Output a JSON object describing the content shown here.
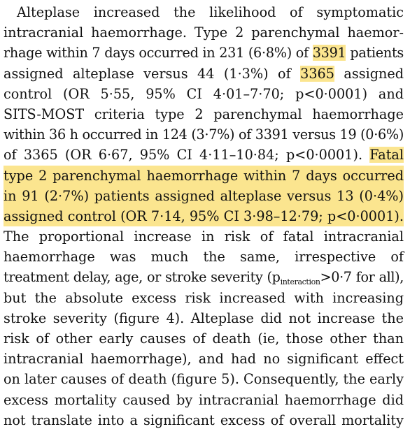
{
  "paragraph": {
    "lines": [
      "Alteplase increased the likelihood of symptomatic",
      "intracranial haemorrhage. Type 2 parenchymal haemor-",
      "rhage within 7 days occurred in 231 (6·8%) of ",
      "3391",
      " patients",
      "assigned alteplase versus 44 (1·3%) of ",
      "3365",
      " assigned",
      "control (OR 5·55, 95% CI 4·01–7·70; p<0·0001) and",
      "SITS-MOST criteria type 2 parenchymal haemorrhage",
      "within 36 h occurred in 124 (3·7%) of 3391 versus 19 (0·6%)",
      "of 3365 (OR 6·67, 95% CI 4·11–10·84; p<0·0001). ",
      "Fatal",
      "type 2 parenchymal haemorrhage within 7 days occurred",
      "in 91 (2·7%) patients assigned alteplase versus 13 (0·4%)",
      "assigned control (OR 7·14, 95% CI 3·98–12·79; p<0·0001).",
      "The proportional increase in risk of fatal intracranial",
      "haemorrhage was much the same, irrespective of",
      "treatment delay, age, or stroke severity (p",
      "interaction",
      ">0·7 for all),",
      "but the absolute excess risk increased with increasing",
      "stroke severity (figure 4). Alteplase did not increase the",
      "risk of other early causes of death (ie, those other than",
      "intracranial haemorrhage), and had no significant effect",
      "on later causes of death (figure 5). Consequently, the early",
      "excess mortality caused by intracranial haemorrhage did",
      "not translate into a significant excess of overall mortality"
    ]
  },
  "highlight_color": "#fbe58f"
}
